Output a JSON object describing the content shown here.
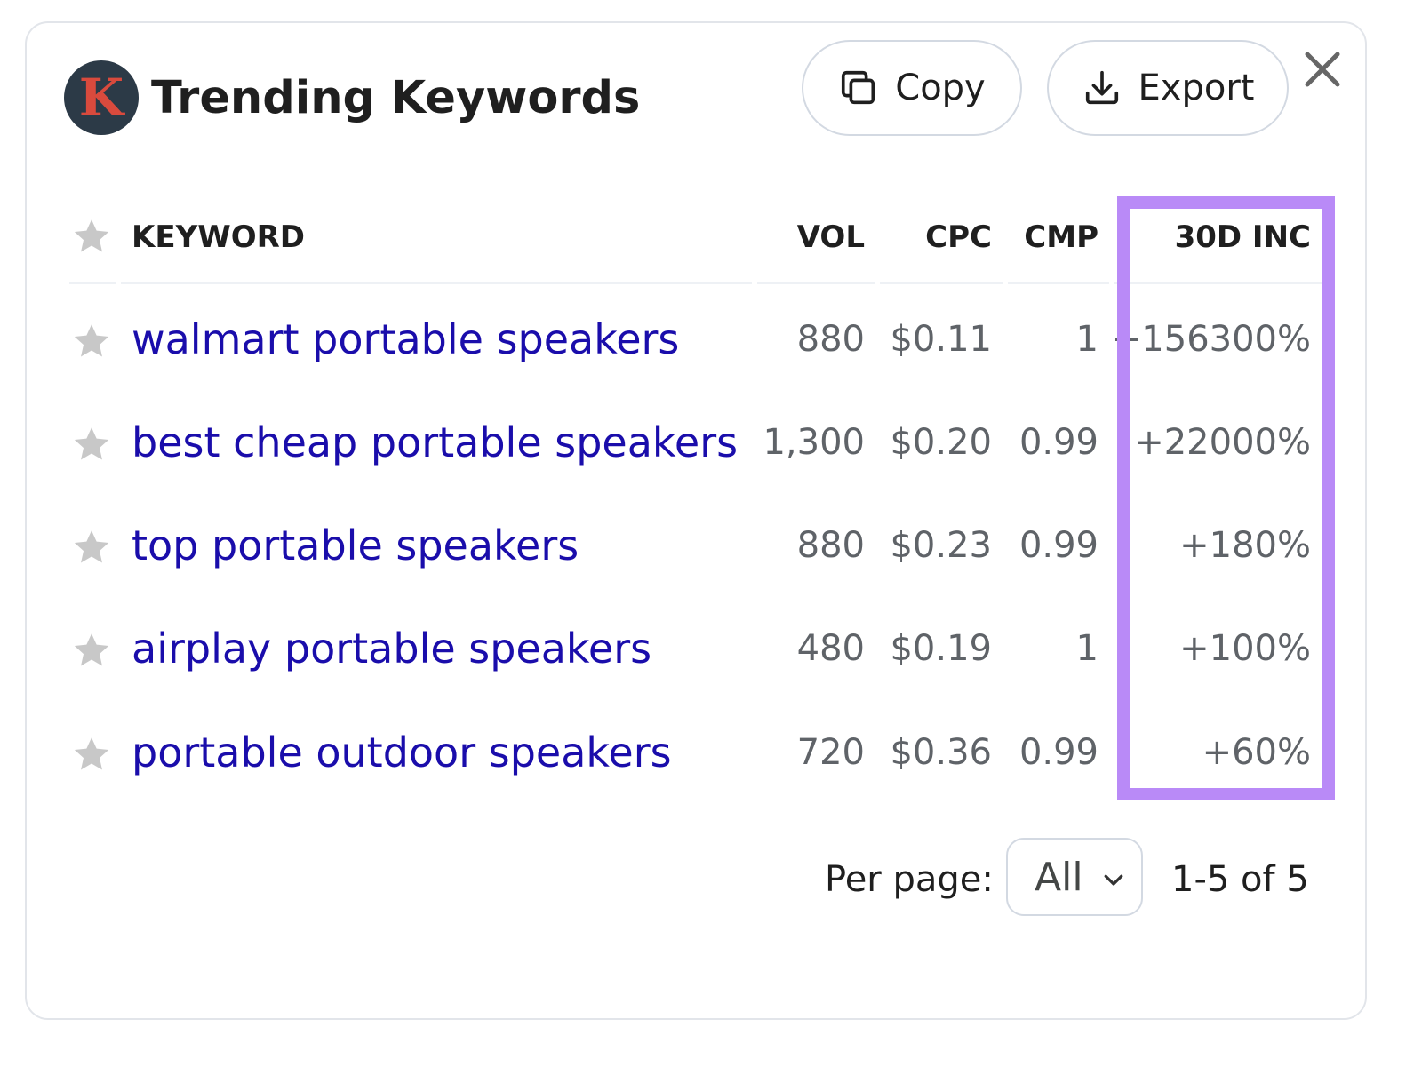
{
  "header": {
    "logo_letter": "K",
    "title": "Trending Keywords",
    "copy_label": "Copy",
    "export_label": "Export"
  },
  "table": {
    "columns": [
      "KEYWORD",
      "VOL",
      "CPC",
      "CMP",
      "30D INC"
    ],
    "rows": [
      {
        "keyword": "walmart portable speakers",
        "vol": "880",
        "cpc": "$0.11",
        "cmp": "1",
        "inc": "+156300%"
      },
      {
        "keyword": "best cheap portable speakers",
        "vol": "1,300",
        "cpc": "$0.20",
        "cmp": "0.99",
        "inc": "+22000%"
      },
      {
        "keyword": "top portable speakers",
        "vol": "880",
        "cpc": "$0.23",
        "cmp": "0.99",
        "inc": "+180%"
      },
      {
        "keyword": "airplay portable speakers",
        "vol": "480",
        "cpc": "$0.19",
        "cmp": "1",
        "inc": "+100%"
      },
      {
        "keyword": "portable outdoor speakers",
        "vol": "720",
        "cpc": "$0.36",
        "cmp": "0.99",
        "inc": "+60%"
      }
    ]
  },
  "pagination": {
    "per_page_label": "Per page:",
    "per_page_value": "All",
    "range_text": "1-5 of 5"
  },
  "colors": {
    "link": "#1a0dab",
    "highlight": "#b98af7",
    "star": "#c8c8c8",
    "logo_bg": "#2c3a47",
    "logo_letter": "#d94a3d"
  },
  "icons": {
    "copy": "copy-icon",
    "export": "download-icon",
    "close": "close-icon",
    "favorite": "star-icon",
    "dropdown": "chevron-down-icon"
  }
}
